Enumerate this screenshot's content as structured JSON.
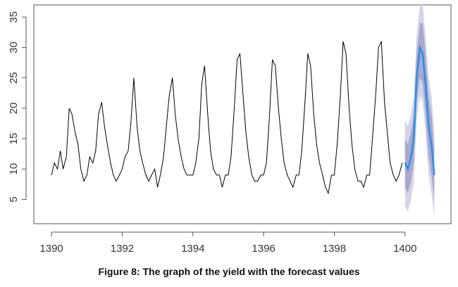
{
  "caption": "Figure 8: The graph of the yield with the forecast values",
  "chart_data": {
    "type": "line",
    "title": "",
    "xlabel": "",
    "ylabel": "",
    "xlim": [
      1389.5,
      1401.3
    ],
    "ylim": [
      1,
      37
    ],
    "xticks": [
      1390,
      1392,
      1394,
      1396,
      1398,
      1400
    ],
    "yticks": [
      5,
      10,
      15,
      20,
      25,
      30,
      35
    ],
    "grid": false,
    "legend": "none",
    "colors": {
      "series": "#000000",
      "forecast": "#2b8fe0",
      "band_80": "#9a9ac8",
      "band_95": "#d4d4e8",
      "axis": "#555555"
    },
    "series": [
      {
        "x": [
          1390.0,
          1390.08,
          1390.17,
          1390.25,
          1390.33,
          1390.42,
          1390.5,
          1390.58,
          1390.67,
          1390.75,
          1390.83,
          1390.92,
          1391.0,
          1391.08,
          1391.17,
          1391.25,
          1391.33,
          1391.42,
          1391.5,
          1391.58,
          1391.67,
          1391.75,
          1391.83,
          1391.92,
          1392.0,
          1392.08,
          1392.17,
          1392.25,
          1392.33,
          1392.42,
          1392.5,
          1392.58,
          1392.67,
          1392.75,
          1392.83,
          1392.92,
          1393.0,
          1393.08,
          1393.17,
          1393.25,
          1393.33,
          1393.42,
          1393.5,
          1393.58,
          1393.67,
          1393.75,
          1393.83,
          1393.92,
          1394.0,
          1394.08,
          1394.17,
          1394.25,
          1394.33,
          1394.42,
          1394.5,
          1394.58,
          1394.67,
          1394.75,
          1394.83,
          1394.92,
          1395.0,
          1395.08,
          1395.17,
          1395.25,
          1395.33,
          1395.42,
          1395.5,
          1395.58,
          1395.67,
          1395.75,
          1395.83,
          1395.92,
          1396.0,
          1396.08,
          1396.17,
          1396.25,
          1396.33,
          1396.42,
          1396.5,
          1396.58,
          1396.67,
          1396.75,
          1396.83,
          1396.92,
          1397.0,
          1397.08,
          1397.17,
          1397.25,
          1397.33,
          1397.42,
          1397.5,
          1397.58,
          1397.67,
          1397.75,
          1397.83,
          1397.92,
          1398.0,
          1398.08,
          1398.17,
          1398.25,
          1398.33,
          1398.42,
          1398.5,
          1398.58,
          1398.67,
          1398.75,
          1398.83,
          1398.92,
          1399.0,
          1399.08,
          1399.17,
          1399.25,
          1399.33,
          1399.42,
          1399.5,
          1399.58,
          1399.67,
          1399.75,
          1399.83,
          1399.92
        ],
        "values": [
          9,
          11,
          10,
          13,
          10,
          12,
          20,
          19,
          16,
          14,
          10,
          8,
          9,
          12,
          11,
          13,
          19,
          21,
          17,
          14,
          11,
          9,
          8,
          9,
          10,
          12,
          13,
          18,
          25,
          17,
          13,
          11,
          9,
          8,
          9,
          10,
          7,
          9,
          12,
          17,
          22,
          25,
          19,
          15,
          12,
          10,
          9,
          9,
          9,
          11,
          15,
          24,
          27,
          19,
          13,
          10,
          9,
          9,
          7,
          9,
          9,
          12,
          20,
          28,
          29,
          22,
          16,
          12,
          9,
          8,
          8,
          9,
          9,
          11,
          19,
          28,
          27,
          20,
          15,
          11,
          9,
          8,
          7,
          9,
          9,
          13,
          21,
          29,
          27,
          19,
          14,
          11,
          9,
          7,
          6,
          9,
          9,
          14,
          22,
          31,
          29,
          20,
          14,
          10,
          8,
          8,
          7,
          9,
          9,
          15,
          22,
          30,
          31,
          21,
          16,
          11,
          9,
          8,
          9,
          11
        ]
      },
      {
        "name": "forecast",
        "x": [
          1400.0,
          1400.08,
          1400.17,
          1400.25,
          1400.33,
          1400.42,
          1400.5,
          1400.58,
          1400.67,
          1400.75,
          1400.83
        ],
        "values": [
          11,
          10,
          12,
          15,
          25,
          30,
          29,
          24,
          17,
          14,
          9
        ],
        "lo80": [
          7,
          6,
          8,
          11,
          21,
          25,
          24,
          19,
          12,
          9,
          5
        ],
        "hi80": [
          15,
          14,
          16,
          19,
          29,
          34,
          34,
          29,
          22,
          19,
          13
        ],
        "lo95": [
          4,
          3,
          5,
          8,
          18,
          22,
          21,
          16,
          9,
          6,
          2
        ],
        "hi95": [
          18,
          17,
          19,
          22,
          32,
          37,
          37,
          32,
          25,
          22,
          16
        ]
      }
    ]
  }
}
